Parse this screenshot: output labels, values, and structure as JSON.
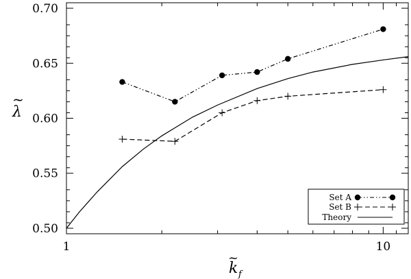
{
  "chart_data": {
    "type": "line",
    "xscale": "log",
    "xlim": [
      1,
      12
    ],
    "ylim": [
      0.495,
      0.705
    ],
    "xticks": [
      1,
      10
    ],
    "xtick_labels": [
      "1",
      "10"
    ],
    "yticks": [
      0.5,
      0.55,
      0.6,
      0.65,
      0.7
    ],
    "ytick_labels": [
      "0.50",
      "0.55",
      "0.60",
      "0.65",
      "0.70"
    ],
    "xlabel": "k",
    "xlabel_sub": "f",
    "ylabel": "λ",
    "legend_position": "bottom-right",
    "series": [
      {
        "name": "Set A",
        "style": "dash-dot-dot",
        "marker": "filled-circle",
        "x": [
          1.5,
          2.2,
          3.1,
          4.0,
          5.0,
          10.0
        ],
        "y": [
          0.633,
          0.615,
          0.639,
          0.642,
          0.654,
          0.681
        ]
      },
      {
        "name": "Set B",
        "style": "dashed",
        "marker": "plus",
        "x": [
          1.5,
          2.2,
          3.1,
          4.0,
          5.0,
          10.0
        ],
        "y": [
          0.581,
          0.579,
          0.605,
          0.616,
          0.62,
          0.626
        ]
      },
      {
        "name": "Theory",
        "style": "solid",
        "marker": "none",
        "x": [
          1.0,
          1.1,
          1.25,
          1.5,
          1.75,
          2.0,
          2.5,
          3.0,
          4.0,
          5.0,
          6.0,
          8.0,
          10.0,
          12.0
        ],
        "y": [
          0.5,
          0.515,
          0.533,
          0.556,
          0.572,
          0.584,
          0.601,
          0.612,
          0.627,
          0.636,
          0.642,
          0.649,
          0.653,
          0.656
        ]
      }
    ]
  }
}
